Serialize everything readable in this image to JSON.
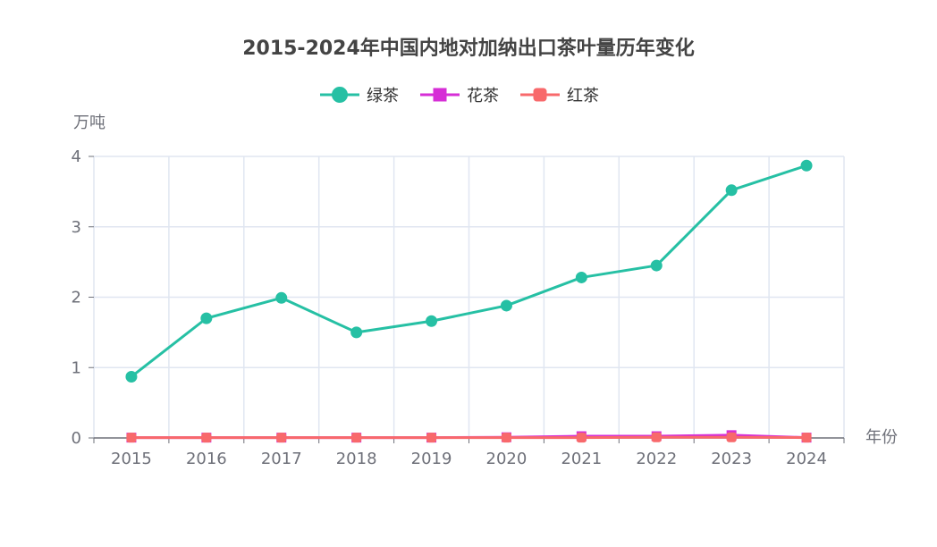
{
  "chart_data": {
    "type": "line",
    "title": "2015-2024年中国内地对加纳出口茶叶量历年变化",
    "xlabel": "年份",
    "ylabel": "万吨",
    "categories": [
      "2015",
      "2016",
      "2017",
      "2018",
      "2019",
      "2020",
      "2021",
      "2022",
      "2023",
      "2024"
    ],
    "ylim": [
      0,
      4
    ],
    "yticks": [
      "0",
      "1",
      "2",
      "3",
      "4"
    ],
    "grid": true,
    "legend_position": "top-center",
    "series": [
      {
        "name": "绿茶",
        "color": "#26c0a4",
        "marker": "circle",
        "values": [
          0.87,
          1.7,
          1.99,
          1.5,
          1.66,
          1.88,
          2.28,
          2.45,
          3.52,
          3.87
        ]
      },
      {
        "name": "花茶",
        "color": "#d62ed6",
        "marker": "square",
        "values": [
          0.005,
          0.005,
          0.005,
          0.005,
          0.005,
          0.01,
          0.025,
          0.025,
          0.04,
          0.005
        ]
      },
      {
        "name": "红茶",
        "color": "#f8696b",
        "marker": "roundrect",
        "values": [
          0.005,
          0.005,
          0.005,
          0.005,
          0.005,
          0.005,
          0.005,
          0.01,
          0.01,
          0.005
        ]
      }
    ]
  }
}
